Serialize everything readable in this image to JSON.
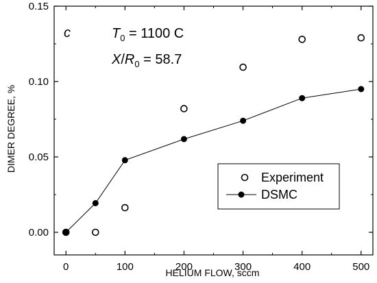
{
  "chart_data": {
    "type": "scatter",
    "xlabel": "HELIUM FLOW, sccm",
    "ylabel": "DIMER DEGREE, %",
    "xlim": [
      -20,
      520
    ],
    "ylim": [
      -0.015,
      0.15
    ],
    "x_ticks": [
      0,
      100,
      200,
      300,
      400,
      500
    ],
    "x_tick_labels": [
      "0",
      "100",
      "200",
      "300",
      "400",
      "500"
    ],
    "y_ticks": [
      0.0,
      0.05,
      0.1,
      0.15
    ],
    "y_tick_labels": [
      "0.00",
      "0.05",
      "0.10",
      "0.15"
    ],
    "grid": false,
    "legend_position": "bottom-right",
    "panel_label": "c",
    "annotations": {
      "t0_symbol": "T",
      "t0_subscript": "0",
      "t0_value": " = 1100 C",
      "xr_symbol_x": "X",
      "xr_slash": "/",
      "xr_symbol_r": "R",
      "xr_subscript": "0",
      "xr_value": " = 58.7"
    },
    "series": [
      {
        "name": "Experiment",
        "marker": "open-circle",
        "line": false,
        "x": [
          0,
          50,
          100,
          200,
          300,
          400,
          500
        ],
        "y": [
          0.0,
          0.0,
          0.0163,
          0.082,
          0.1095,
          0.128,
          0.129
        ]
      },
      {
        "name": "DSMC",
        "marker": "filled-circle",
        "line": true,
        "x": [
          0,
          50,
          100,
          200,
          300,
          400,
          500
        ],
        "y": [
          0.0,
          0.0193,
          0.0478,
          0.0618,
          0.074,
          0.089,
          0.095
        ]
      }
    ]
  }
}
